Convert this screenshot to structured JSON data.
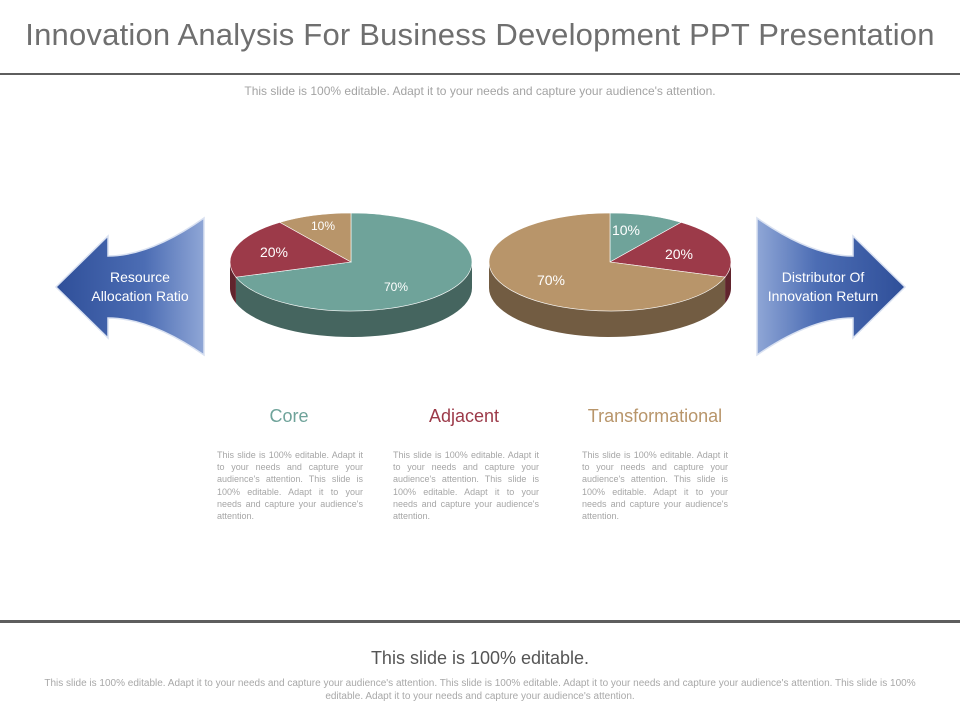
{
  "title": "Innovation Analysis For Business Development PPT Presentation",
  "subtitle": "This slide is 100% editable. Adapt it to your needs and capture your audience's attention.",
  "colors": {
    "teal": "#6fa39a",
    "red": "#9c3a49",
    "tan": "#b8956a",
    "arrow_blue": "#4464ad",
    "core_heading": "#6fa39a",
    "adjacent_heading": "#9c3a49",
    "transformational_heading": "#b8956a"
  },
  "arrows": {
    "left_label": "Resource Allocation Ratio",
    "right_label": "Distributor Of Innovation Return"
  },
  "chart_data": [
    {
      "type": "pie",
      "name": "Resource Allocation Ratio",
      "slices": [
        {
          "label": "70%",
          "value": 70,
          "color": "#6fa39a"
        },
        {
          "label": "20%",
          "value": 20,
          "color": "#9c3a49"
        },
        {
          "label": "10%",
          "value": 10,
          "color": "#b8956a"
        }
      ]
    },
    {
      "type": "pie",
      "name": "Distributor Of Innovation Return",
      "slices": [
        {
          "label": "10%",
          "value": 10,
          "color": "#6fa39a"
        },
        {
          "label": "20%",
          "value": 20,
          "color": "#9c3a49"
        },
        {
          "label": "70%",
          "value": 70,
          "color": "#b8956a"
        }
      ]
    }
  ],
  "columns": [
    {
      "heading": "Core",
      "body": "This slide is 100% editable. Adapt it to your needs and capture your audience's attention. This slide is 100% editable. Adapt it to your needs and capture your audience's attention."
    },
    {
      "heading": "Adjacent",
      "body": "This slide is 100% editable. Adapt it to your needs and capture your audience's attention. This slide is 100% editable. Adapt it to your needs and capture your audience's attention."
    },
    {
      "heading": "Transformational",
      "body": "This slide is 100% editable. Adapt it to your needs and capture your audience's attention. This slide is 100% editable. Adapt it to your needs and capture your audience's attention."
    }
  ],
  "footer": {
    "title": "This slide is 100% editable.",
    "body": "This slide is 100% editable. Adapt it to your needs and capture your audience's attention. This slide is 100% editable. Adapt it to your needs and capture your audience's attention. This slide is 100% editable. Adapt it to your needs and capture your audience's attention."
  }
}
